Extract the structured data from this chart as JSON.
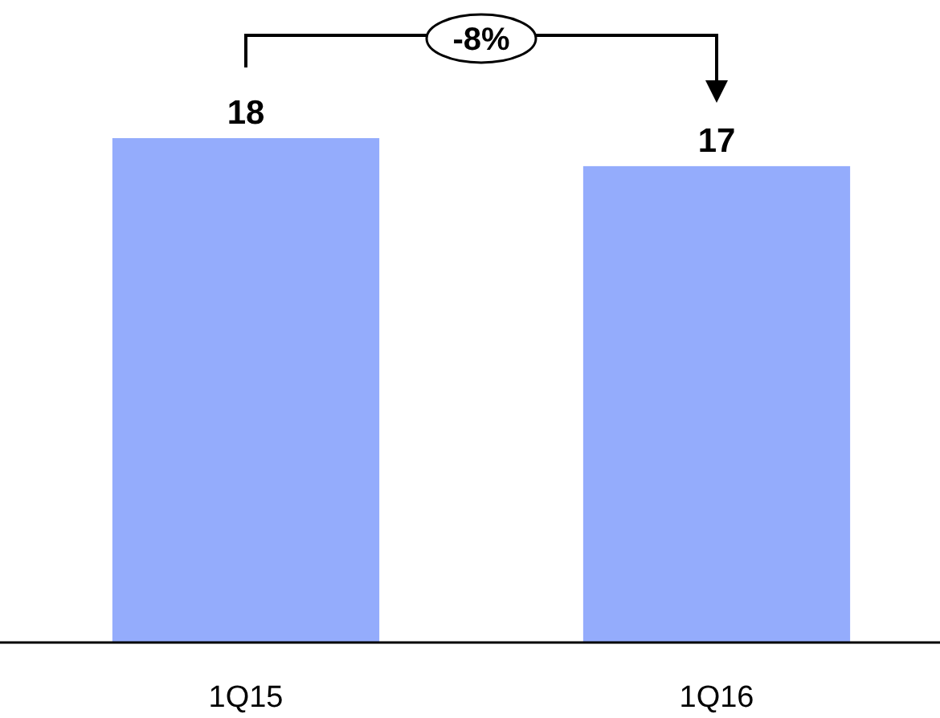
{
  "chart_data": {
    "type": "bar",
    "categories": [
      "1Q15",
      "1Q16"
    ],
    "values": [
      18,
      17
    ],
    "color": "#94acfc",
    "data_labels": true,
    "annotations": [
      "-8%"
    ]
  }
}
